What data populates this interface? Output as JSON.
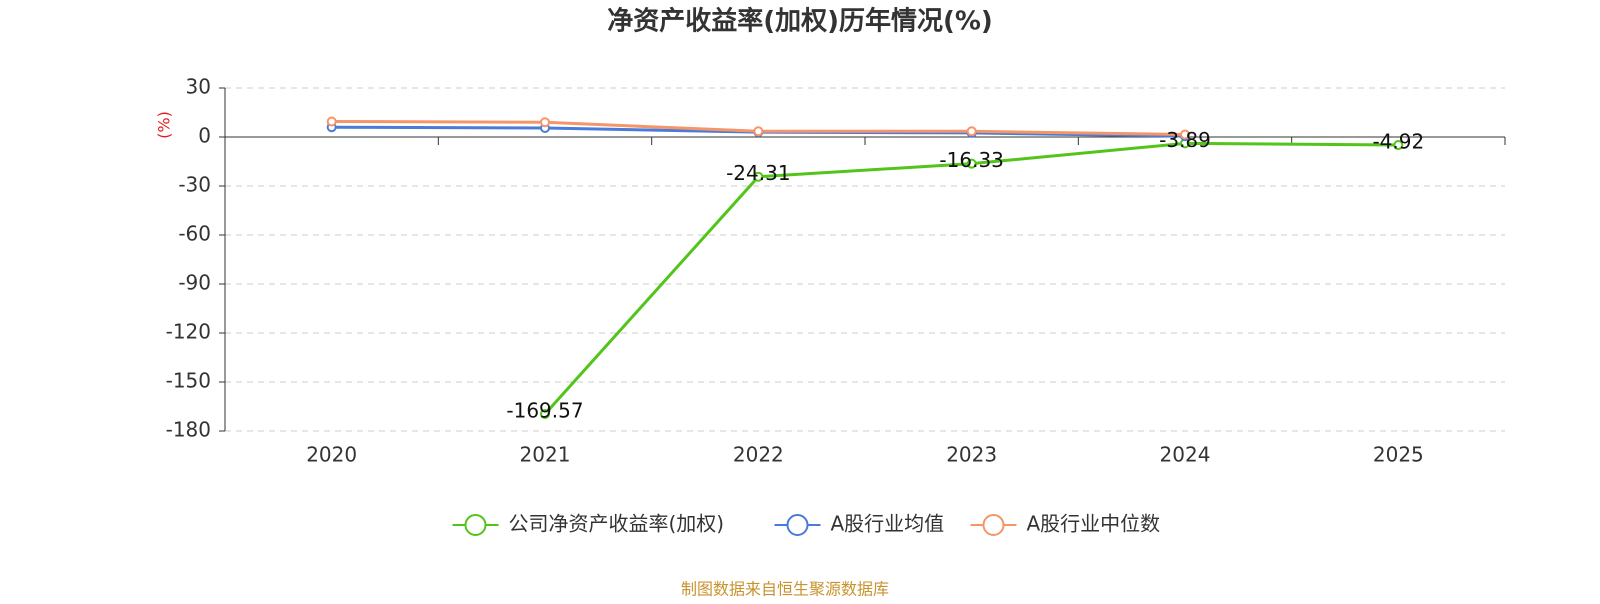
{
  "chart_data": {
    "type": "line",
    "title": "净资产收益率(加权)历年情况(%)",
    "y_label": "(%)",
    "categories": [
      "2020",
      "2021",
      "2022",
      "2023",
      "2024",
      "2025"
    ],
    "series": [
      {
        "name": "公司净资产收益率(加权)",
        "color": "#52c41a",
        "values": [
          null,
          -169.57,
          -24.31,
          -16.33,
          -3.89,
          -4.92
        ],
        "data_labels": true
      },
      {
        "name": "A股行业均值",
        "color": "#4a7bd8",
        "values": [
          6,
          5.5,
          3,
          2.5,
          0.5,
          null
        ]
      },
      {
        "name": "A股行业中位数",
        "color": "#f4956a",
        "values": [
          9.5,
          9,
          3.5,
          3.5,
          1.5,
          null
        ]
      }
    ],
    "ylim": [
      -180,
      30
    ],
    "yticks": [
      -180,
      -150,
      -120,
      -90,
      -60,
      -30,
      0,
      30
    ],
    "grid": true,
    "source": "制图数据来自恒生聚源数据库"
  }
}
